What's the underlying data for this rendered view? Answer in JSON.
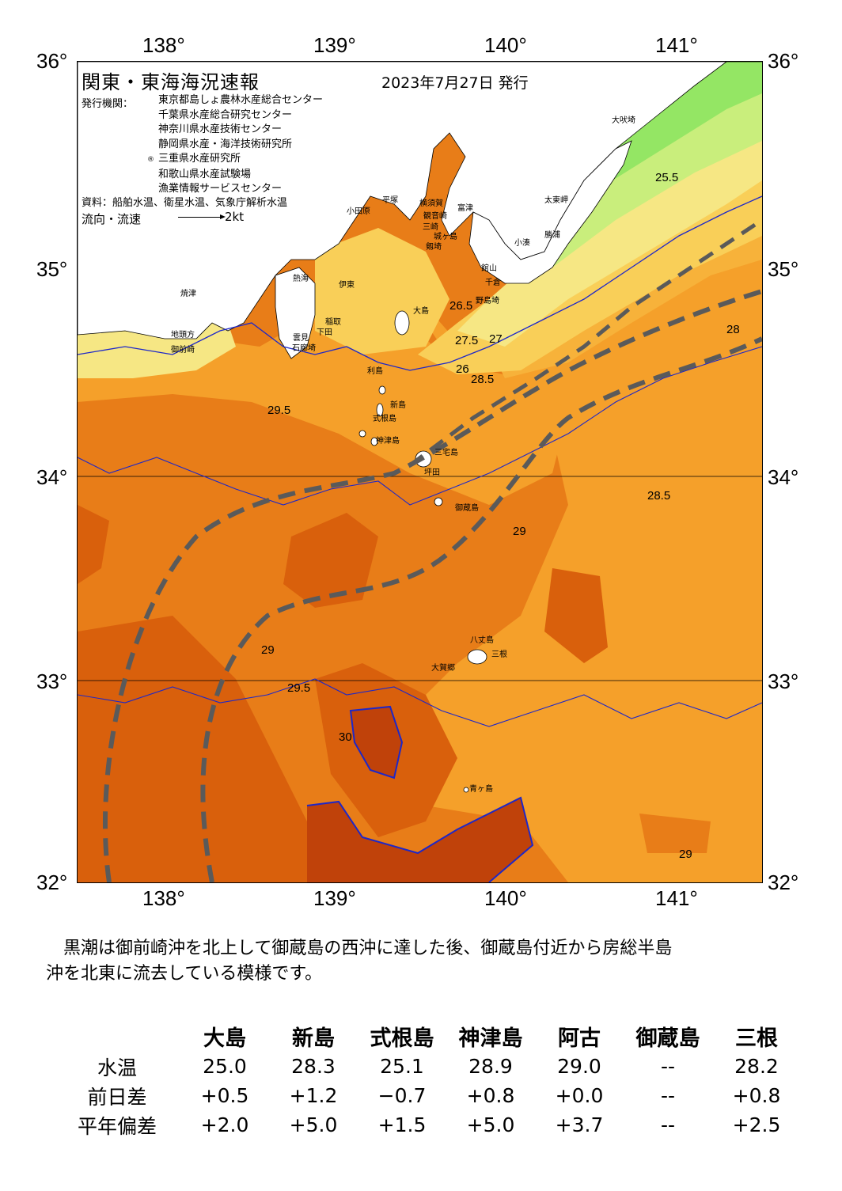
{
  "map": {
    "title": "関東・東海海況速報",
    "date": "2023年7月27日 発行",
    "publisher_label": "発行機関：",
    "publishers": [
      "東京都島しょ農林水産総合センター",
      "千葉県水産総合研究センター",
      "神奈川県水産技術センター",
      "静岡県水産・海洋技術研究所",
      "三重県水産研究所",
      "和歌山県水産試験場",
      "漁業情報サービスセンター"
    ],
    "publisher_mark": "®",
    "source": "資料：船舶水温、衛星水温、気象庁解析水温",
    "flow_label": "流向・流速",
    "flow_speed": "2kt",
    "lon_ticks": [
      "138°",
      "139°",
      "140°",
      "141°"
    ],
    "lat_ticks": [
      "36°",
      "35°",
      "34°",
      "33°",
      "32°"
    ],
    "colors": {
      "sea_deep": "#c0420a",
      "sea_29_5": "#d9600c",
      "sea_29": "#e87d18",
      "sea_28_5": "#f5a02a",
      "sea_28": "#f7b23a",
      "sea_27_5": "#f9cf58",
      "sea_27": "#f6e784",
      "sea_26": "#c9ee7c",
      "sea_25_5": "#94e664",
      "land": "#ffffff",
      "isotherm": "#1d27c9",
      "kuroshio": "#5a5a5a"
    },
    "places": [
      "大吠埼",
      "太東岬",
      "勝浦",
      "小湊",
      "館山",
      "千倉",
      "野島埼",
      "富津",
      "横須賀",
      "観音崎",
      "平塚",
      "三崎",
      "剱埼",
      "城ヶ島",
      "小田原",
      "熱海",
      "伊東",
      "稲取",
      "下田",
      "石廊埼",
      "雲見",
      "焼津",
      "御前崎",
      "地頭方",
      "大島",
      "利島",
      "新島",
      "式根島",
      "神津島",
      "三宅島",
      "坪田",
      "御蔵島",
      "八丈島",
      "三根",
      "大賀郷",
      "青ヶ島"
    ],
    "isotherm_labels": [
      "25.5",
      "26",
      "26.5",
      "27",
      "27.5",
      "28",
      "28.5",
      "29",
      "29.5",
      "30"
    ]
  },
  "summary": {
    "line1": "　黒潮は御前崎沖を北上して御蔵島の西沖に達した後、御蔵島付近から房総半島",
    "line2": "沖を北東に流去している模様です。"
  },
  "obs_table": {
    "stations": [
      "大島",
      "新島",
      "式根島",
      "神津島",
      "阿古",
      "御蔵島",
      "三根"
    ],
    "rows": [
      {
        "label": "水温",
        "values": [
          "25.0",
          "28.3",
          "25.1",
          "28.9",
          "29.0",
          "--",
          "28.2"
        ]
      },
      {
        "label": "前日差",
        "values": [
          "+0.5",
          "+1.2",
          "−0.7",
          "+0.8",
          "+0.0",
          "--",
          "+0.8"
        ]
      },
      {
        "label": "平年偏差",
        "values": [
          "+2.0",
          "+5.0",
          "+1.5",
          "+5.0",
          "+3.7",
          "--",
          "+2.5"
        ]
      }
    ]
  }
}
